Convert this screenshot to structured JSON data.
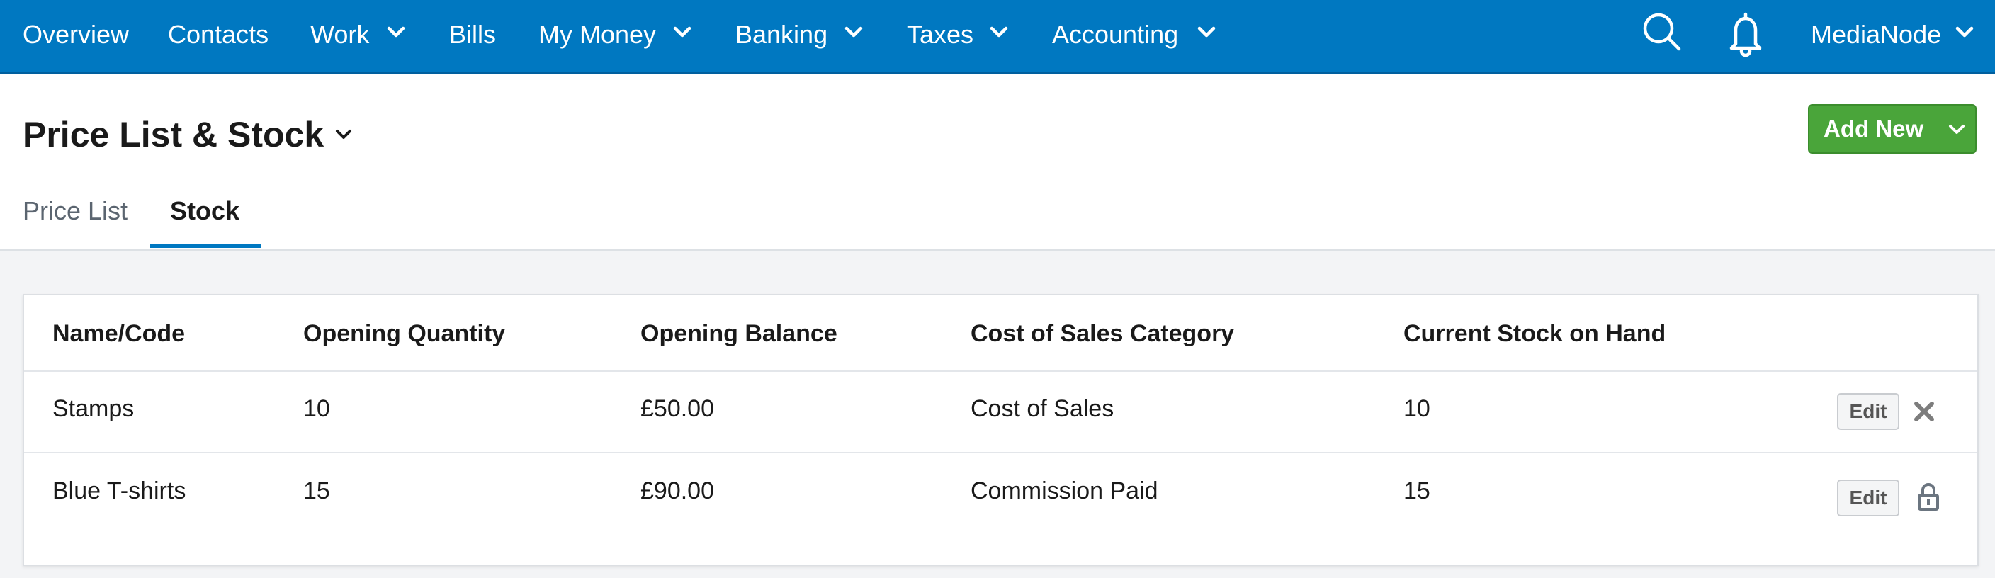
{
  "nav": {
    "items": [
      "Overview",
      "Contacts",
      "Work",
      "Bills",
      "My Money",
      "Banking",
      "Taxes",
      "Accounting"
    ],
    "user": "MediaNode"
  },
  "header": {
    "title": "Price List & Stock",
    "button": "Add New"
  },
  "tabs": [
    "Price List",
    "Stock"
  ],
  "table": {
    "columns": [
      "Name/Code",
      "Opening Quantity",
      "Opening Balance",
      "Cost of Sales Category",
      "Current Stock on Hand"
    ],
    "rows": [
      [
        "Stamps",
        "10",
        "£50.00",
        "Cost of Sales",
        "10",
        "Edit"
      ],
      [
        "Blue T-shirts",
        "15",
        "£90.00",
        "Commission Paid",
        "15",
        "Edit"
      ]
    ]
  }
}
